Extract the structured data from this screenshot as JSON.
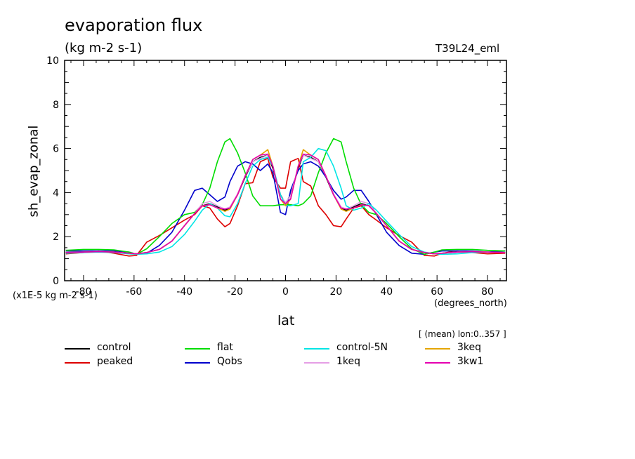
{
  "chart_data": {
    "type": "line",
    "title": "evaporation flux",
    "units": "(kg m-2 s-1)",
    "run_id": "T39L24_eml",
    "xlabel": "lat",
    "x_units": "(degrees_north)",
    "ylabel": "sh_evap_zonal",
    "y_scale_label": "(x1E-5 kg m-2 s-1)",
    "averaging_note": "[ (mean) lon:0..357 ]",
    "xlim": [
      -87.5,
      87.5
    ],
    "ylim": [
      0,
      10
    ],
    "x_ticks": [
      -80,
      -60,
      -40,
      -20,
      0,
      20,
      40,
      60,
      80
    ],
    "y_ticks": [
      0,
      2,
      4,
      6,
      8,
      10
    ],
    "x_tick_labels": [
      "-80",
      "-60",
      "-40",
      "-20",
      "0",
      "20",
      "40",
      "60",
      "80"
    ],
    "y_tick_labels": [
      "0",
      "2",
      "4",
      "6",
      "8",
      "10"
    ],
    "grid": false,
    "legend_position": "bottom",
    "x": [
      -87,
      -80,
      -74,
      -68,
      -62,
      -59,
      -55,
      -50,
      -45,
      -40,
      -36,
      -33,
      -30,
      -27,
      -24,
      -22,
      -19,
      -16,
      -13,
      -10,
      -7,
      -5,
      -2,
      0,
      2,
      5,
      7,
      10,
      13,
      16,
      19,
      22,
      24,
      27,
      30,
      33,
      36,
      40,
      45,
      50,
      55,
      59,
      62,
      68,
      74,
      80,
      87
    ],
    "series": [
      {
        "name": "control",
        "color": "#000000",
        "values": [
          1.28,
          1.3,
          1.32,
          1.3,
          1.25,
          1.22,
          1.28,
          1.42,
          1.8,
          2.5,
          3.05,
          3.4,
          3.5,
          3.35,
          3.2,
          3.3,
          3.9,
          4.7,
          5.4,
          5.6,
          5.7,
          5.1,
          3.9,
          3.5,
          3.9,
          5.1,
          5.7,
          5.6,
          5.4,
          4.7,
          3.9,
          3.3,
          3.2,
          3.35,
          3.5,
          3.4,
          3.05,
          2.5,
          1.8,
          1.42,
          1.28,
          1.22,
          1.25,
          1.3,
          1.32,
          1.3,
          1.28
        ]
      },
      {
        "name": "peaked",
        "color": "#dd0000",
        "values": [
          1.22,
          1.28,
          1.35,
          1.25,
          1.12,
          1.15,
          1.75,
          2.05,
          2.4,
          2.75,
          3.0,
          3.4,
          3.3,
          2.8,
          2.45,
          2.6,
          3.4,
          4.4,
          4.45,
          5.4,
          5.55,
          4.7,
          4.2,
          4.2,
          5.4,
          5.55,
          4.5,
          4.3,
          3.4,
          3.0,
          2.5,
          2.45,
          2.8,
          3.3,
          3.4,
          3.0,
          2.75,
          2.4,
          2.05,
          1.75,
          1.15,
          1.12,
          1.25,
          1.35,
          1.28,
          1.22,
          1.25
        ]
      },
      {
        "name": "Qobs",
        "color": "#0000cc",
        "values": [
          1.35,
          1.35,
          1.35,
          1.35,
          1.3,
          1.2,
          1.25,
          1.6,
          2.2,
          3.2,
          4.1,
          4.2,
          3.9,
          3.6,
          3.8,
          4.5,
          5.2,
          5.4,
          5.3,
          5.0,
          5.3,
          4.9,
          3.1,
          3.0,
          4.1,
          5.0,
          5.3,
          5.4,
          5.2,
          4.7,
          4.1,
          3.7,
          3.8,
          4.1,
          4.1,
          3.6,
          3.0,
          2.2,
          1.6,
          1.25,
          1.2,
          1.3,
          1.35,
          1.35,
          1.35,
          1.3,
          1.35
        ]
      },
      {
        "name": "flat",
        "color": "#00dd00",
        "values": [
          1.38,
          1.42,
          1.42,
          1.4,
          1.3,
          1.2,
          1.45,
          2.0,
          2.6,
          3.0,
          3.1,
          3.45,
          4.2,
          5.4,
          6.3,
          6.45,
          5.8,
          4.9,
          3.85,
          3.4,
          3.4,
          3.4,
          3.45,
          3.45,
          3.45,
          3.4,
          3.5,
          3.85,
          4.9,
          5.8,
          6.45,
          6.3,
          5.4,
          4.2,
          3.45,
          3.1,
          3.0,
          2.6,
          2.0,
          1.45,
          1.2,
          1.3,
          1.4,
          1.42,
          1.42,
          1.38,
          1.35
        ]
      },
      {
        "name": "1keq",
        "color": "#e59ee5",
        "values": [
          1.28,
          1.3,
          1.32,
          1.3,
          1.25,
          1.22,
          1.28,
          1.42,
          1.8,
          2.5,
          3.05,
          3.5,
          3.6,
          3.4,
          3.25,
          3.35,
          3.95,
          4.75,
          5.4,
          5.55,
          5.7,
          5.2,
          3.85,
          3.55,
          3.85,
          5.2,
          5.7,
          5.55,
          5.4,
          4.75,
          3.95,
          3.35,
          3.25,
          3.4,
          3.6,
          3.5,
          3.05,
          2.5,
          1.8,
          1.42,
          1.28,
          1.22,
          1.25,
          1.3,
          1.32,
          1.3,
          1.28
        ]
      },
      {
        "name": "control-5N",
        "color": "#00e5e5",
        "values": [
          1.25,
          1.28,
          1.3,
          1.28,
          1.22,
          1.2,
          1.22,
          1.3,
          1.55,
          2.1,
          2.7,
          3.2,
          3.5,
          3.3,
          2.95,
          2.9,
          3.5,
          4.4,
          5.2,
          5.5,
          5.6,
          5.2,
          3.9,
          3.4,
          3.4,
          3.5,
          5.4,
          5.6,
          6.0,
          5.9,
          5.2,
          4.2,
          3.4,
          3.2,
          3.3,
          3.5,
          3.2,
          2.7,
          2.1,
          1.55,
          1.3,
          1.22,
          1.2,
          1.22,
          1.28,
          1.3,
          1.28
        ]
      },
      {
        "name": "3keq",
        "color": "#e5a500",
        "values": [
          1.28,
          1.3,
          1.32,
          1.3,
          1.25,
          1.22,
          1.28,
          1.42,
          1.8,
          2.5,
          3.05,
          3.4,
          3.45,
          3.3,
          3.15,
          3.25,
          3.9,
          4.75,
          5.5,
          5.7,
          5.95,
          5.2,
          3.7,
          3.4,
          3.7,
          5.2,
          5.95,
          5.7,
          5.5,
          4.75,
          3.9,
          3.25,
          3.15,
          3.3,
          3.45,
          3.4,
          3.05,
          2.5,
          1.8,
          1.42,
          1.28,
          1.22,
          1.25,
          1.3,
          1.32,
          1.3,
          1.28
        ]
      },
      {
        "name": "3kw1",
        "color": "#e500b0",
        "values": [
          1.28,
          1.3,
          1.32,
          1.3,
          1.25,
          1.22,
          1.28,
          1.42,
          1.8,
          2.5,
          3.05,
          3.4,
          3.45,
          3.3,
          3.25,
          3.3,
          3.9,
          4.75,
          5.5,
          5.7,
          5.75,
          5.2,
          3.7,
          3.5,
          3.7,
          5.2,
          5.75,
          5.7,
          5.5,
          4.75,
          3.9,
          3.3,
          3.25,
          3.3,
          3.45,
          3.4,
          3.05,
          2.5,
          1.8,
          1.42,
          1.28,
          1.22,
          1.25,
          1.3,
          1.32,
          1.3,
          1.28
        ]
      }
    ],
    "legend_order": [
      "control",
      "flat",
      "control-5N",
      "3keq",
      "peaked",
      "Qobs",
      "1keq",
      "3kw1"
    ]
  }
}
